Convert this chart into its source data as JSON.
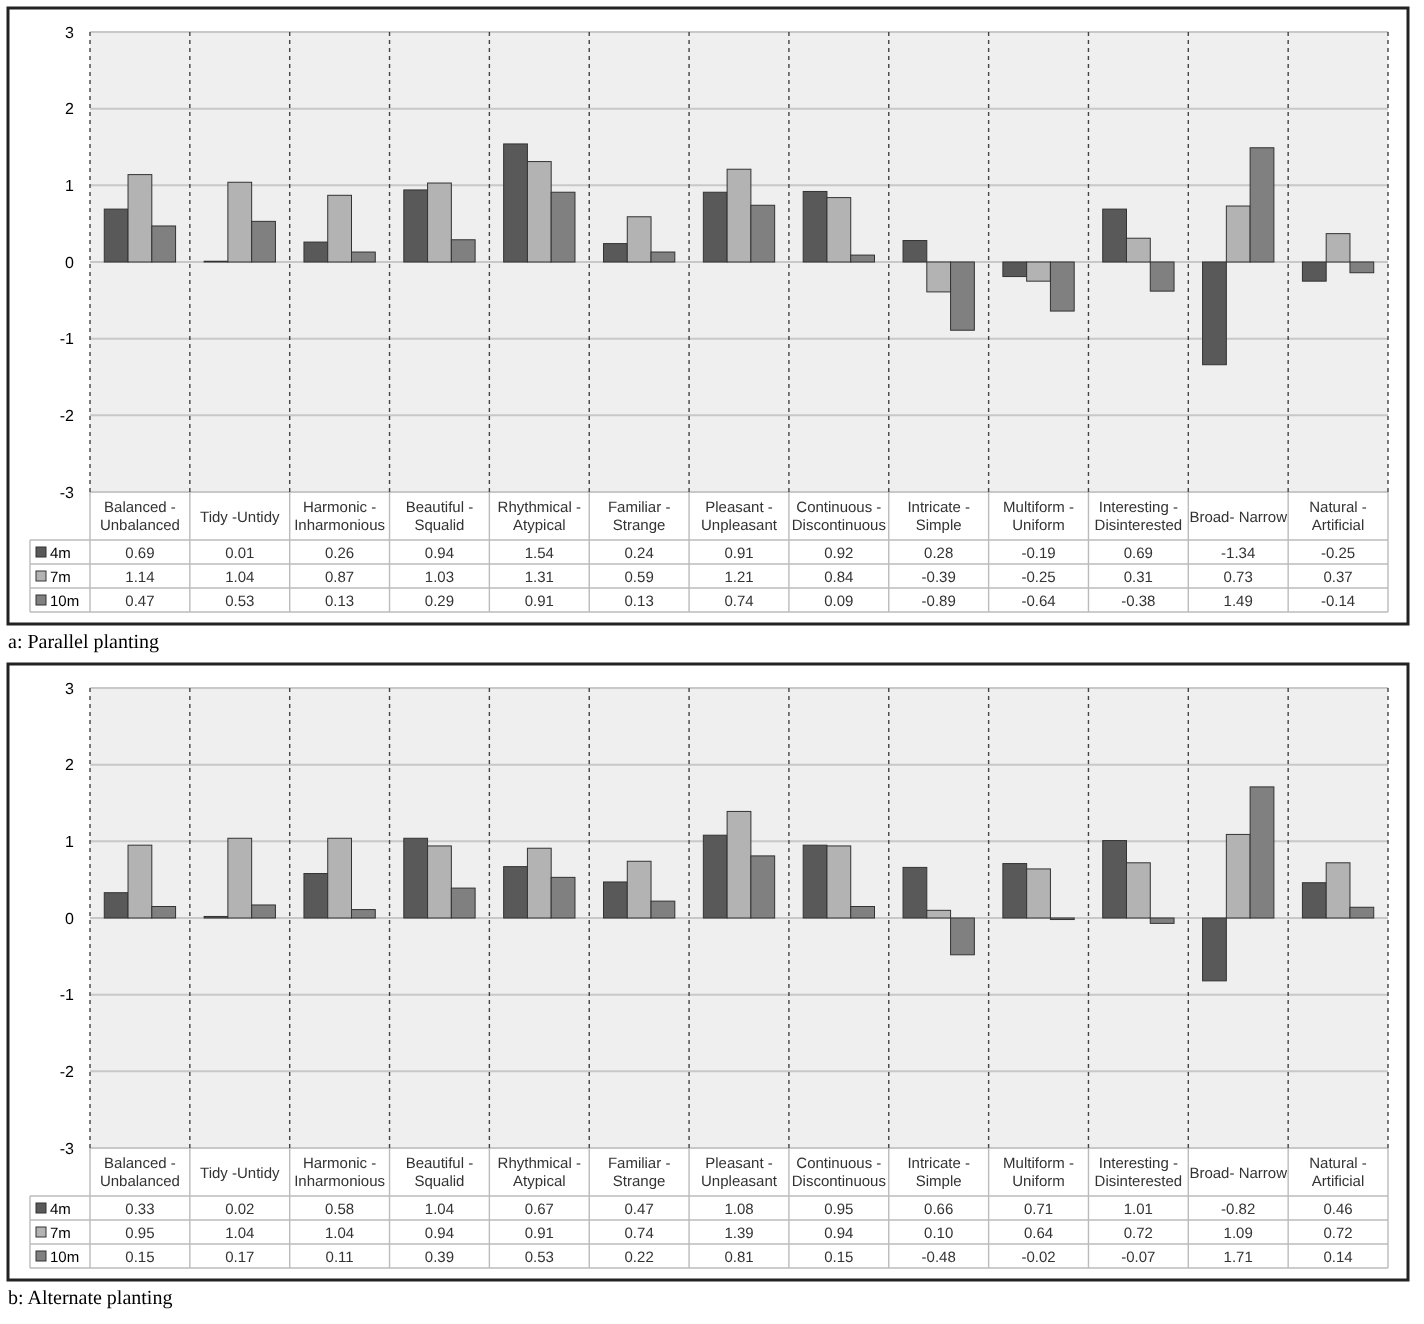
{
  "chart_data": [
    {
      "type": "bar",
      "annotations": [
        "a: Parallel planting"
      ],
      "categories": [
        "Balanced - Unbalanced",
        "Tidy -Untidy",
        "Harmonic - Inharmonious",
        "Beautiful - Squalid",
        "Rhythmical - Atypical",
        "Familiar - Strange",
        "Pleasant - Unpleasant",
        "Continuous - Discontinuous",
        "Intricate - Simple",
        "Multiform - Uniform",
        "Interesting - Disinterested",
        "Broad- Narrow",
        "Natural - Artificial"
      ],
      "series": [
        {
          "name": "4m",
          "color": "#595959",
          "values": [
            0.69,
            0.01,
            0.26,
            0.94,
            1.54,
            0.24,
            0.91,
            0.92,
            0.28,
            -0.19,
            0.69,
            -1.34,
            -0.25
          ]
        },
        {
          "name": "7m",
          "color": "#b3b3b3",
          "values": [
            1.14,
            1.04,
            0.87,
            1.03,
            1.31,
            0.59,
            1.21,
            0.84,
            -0.39,
            -0.25,
            0.31,
            0.73,
            0.37
          ]
        },
        {
          "name": "10m",
          "color": "#808080",
          "values": [
            0.47,
            0.53,
            0.13,
            0.29,
            0.91,
            0.13,
            0.74,
            0.09,
            -0.89,
            -0.64,
            -0.38,
            1.49,
            -0.14
          ]
        }
      ],
      "ylim": [
        -3,
        3
      ],
      "yticks": [
        -3,
        -2,
        -1,
        0,
        1,
        2,
        3
      ],
      "grid": true,
      "legend": "bottom",
      "data_labels": true
    },
    {
      "type": "bar",
      "annotations": [
        "b: Alternate planting"
      ],
      "categories": [
        "Balanced - Unbalanced",
        "Tidy -Untidy",
        "Harmonic - Inharmonious",
        "Beautiful - Squalid",
        "Rhythmical - Atypical",
        "Familiar - Strange",
        "Pleasant - Unpleasant",
        "Continuous - Discontinuous",
        "Intricate - Simple",
        "Multiform - Uniform",
        "Interesting - Disinterested",
        "Broad- Narrow",
        "Natural - Artificial"
      ],
      "series": [
        {
          "name": "4m",
          "color": "#595959",
          "values": [
            0.33,
            0.02,
            0.58,
            1.04,
            0.67,
            0.47,
            1.08,
            0.95,
            0.66,
            0.71,
            1.01,
            -0.82,
            0.46
          ]
        },
        {
          "name": "7m",
          "color": "#b3b3b3",
          "values": [
            0.95,
            1.04,
            1.04,
            0.94,
            0.91,
            0.74,
            1.39,
            0.94,
            0.1,
            0.64,
            0.72,
            1.09,
            0.72
          ],
          "value_labels": [
            "0.95",
            "1.04",
            "1.04",
            "0.94",
            "0.91",
            "0.74",
            "1.39",
            "0.94",
            "0.10",
            "0.64",
            "0.72",
            "1.09",
            "0.72"
          ]
        },
        {
          "name": "10m",
          "color": "#808080",
          "values": [
            0.15,
            0.17,
            0.11,
            0.39,
            0.53,
            0.22,
            0.81,
            0.15,
            -0.48,
            -0.02,
            -0.07,
            1.71,
            0.14
          ]
        }
      ],
      "ylim": [
        -3,
        3
      ],
      "yticks": [
        -3,
        -2,
        -1,
        0,
        1,
        2,
        3
      ],
      "grid": true,
      "legend": "bottom",
      "data_labels": true
    }
  ]
}
